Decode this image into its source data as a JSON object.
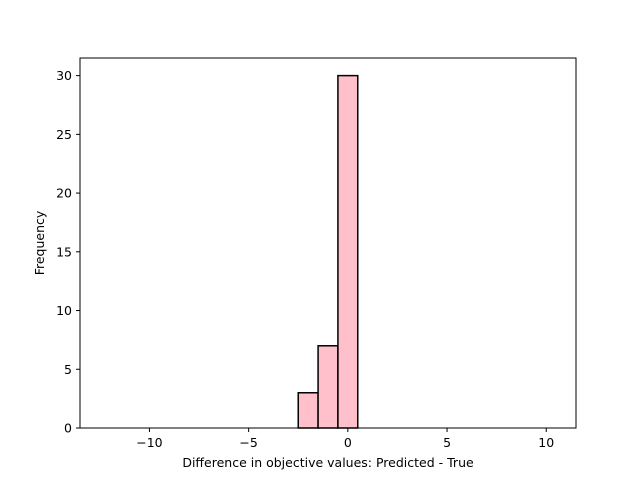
{
  "chart_data": {
    "type": "histogram",
    "title": "",
    "xlabel": "Difference in objective values: Predicted - True",
    "ylabel": "Frequency",
    "xlim": [
      -13.5,
      11.5
    ],
    "ylim": [
      0,
      31.5
    ],
    "xticks": [
      -10,
      -5,
      0,
      5,
      10
    ],
    "yticks": [
      0,
      5,
      10,
      15,
      20,
      25,
      30
    ],
    "bins": [
      {
        "start": -12.5,
        "end": -11.5,
        "count": 0
      },
      {
        "start": -11.5,
        "end": -10.5,
        "count": 0
      },
      {
        "start": -10.5,
        "end": -9.5,
        "count": 0
      },
      {
        "start": -9.5,
        "end": -8.5,
        "count": 0
      },
      {
        "start": -8.5,
        "end": -7.5,
        "count": 0
      },
      {
        "start": -7.5,
        "end": -6.5,
        "count": 0
      },
      {
        "start": -6.5,
        "end": -5.5,
        "count": 0
      },
      {
        "start": -5.5,
        "end": -4.5,
        "count": 0
      },
      {
        "start": -4.5,
        "end": -3.5,
        "count": 0
      },
      {
        "start": -3.5,
        "end": -2.5,
        "count": 0
      },
      {
        "start": -2.5,
        "end": -1.5,
        "count": 3
      },
      {
        "start": -1.5,
        "end": -0.5,
        "count": 7
      },
      {
        "start": -0.5,
        "end": 0.5,
        "count": 30
      },
      {
        "start": 0.5,
        "end": 1.5,
        "count": 0
      },
      {
        "start": 1.5,
        "end": 2.5,
        "count": 0
      },
      {
        "start": 2.5,
        "end": 3.5,
        "count": 0
      },
      {
        "start": 3.5,
        "end": 4.5,
        "count": 0
      },
      {
        "start": 4.5,
        "end": 5.5,
        "count": 0
      },
      {
        "start": 5.5,
        "end": 6.5,
        "count": 0
      },
      {
        "start": 6.5,
        "end": 7.5,
        "count": 0
      },
      {
        "start": 7.5,
        "end": 8.5,
        "count": 0
      },
      {
        "start": 8.5,
        "end": 9.5,
        "count": 0
      },
      {
        "start": 9.5,
        "end": 10.5,
        "count": 0
      }
    ],
    "bar_color": "#ffc0cb",
    "edge_color": "#000000",
    "grid": false,
    "legend": "none"
  }
}
